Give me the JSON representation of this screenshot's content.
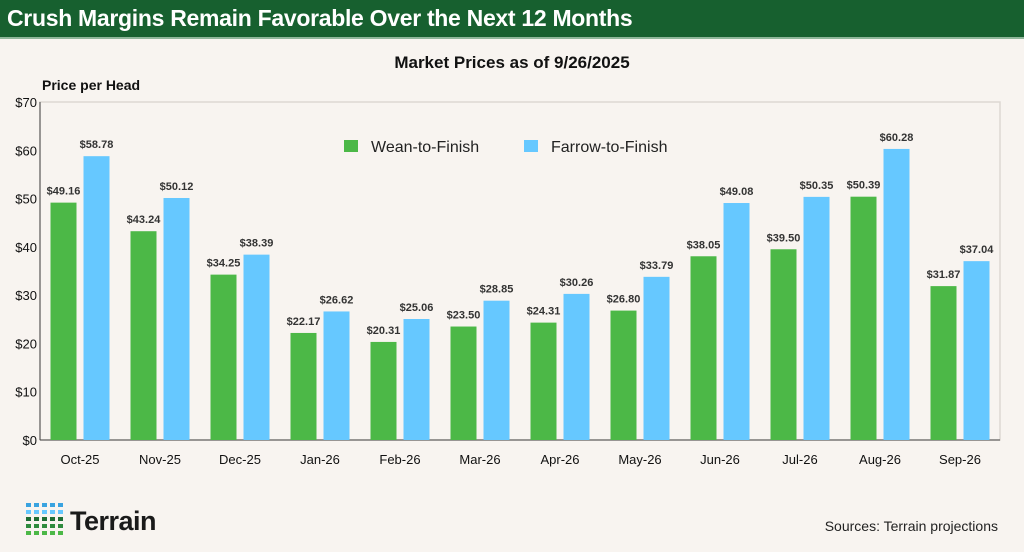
{
  "header": {
    "title": "Crush Margins Remain Favorable Over the Next 12 Months"
  },
  "chart_data": {
    "type": "bar",
    "title": "Market Prices as of 9/26/2025",
    "ylabel": "Price per Head",
    "xlabel": "",
    "ylim": [
      0,
      70
    ],
    "yticks": [
      0,
      10,
      20,
      30,
      40,
      50,
      60,
      70
    ],
    "ytick_labels": [
      "$0",
      "$10",
      "$20",
      "$30",
      "$40",
      "$50",
      "$60",
      "$70"
    ],
    "grid": false,
    "legend": "top-center",
    "categories": [
      "Oct-25",
      "Nov-25",
      "Dec-25",
      "Jan-26",
      "Feb-26",
      "Mar-26",
      "Apr-26",
      "May-26",
      "Jun-26",
      "Jul-26",
      "Aug-26",
      "Sep-26"
    ],
    "series": [
      {
        "name": "Wean-to-Finish",
        "color": "#4cb847",
        "values": [
          49.16,
          43.24,
          34.25,
          22.17,
          20.31,
          23.5,
          24.31,
          26.8,
          38.05,
          39.5,
          50.39,
          31.87
        ],
        "labels": [
          "$49.16",
          "$43.24",
          "$34.25",
          "$22.17",
          "$20.31",
          "$23.50",
          "$24.31",
          "$26.80",
          "$38.05",
          "$39.50",
          "$50.39",
          "$31.87"
        ]
      },
      {
        "name": "Farrow-to-Finish",
        "color": "#66c8ff",
        "values": [
          58.78,
          50.12,
          38.39,
          26.62,
          25.06,
          28.85,
          30.26,
          33.79,
          49.08,
          50.35,
          60.28,
          37.04
        ],
        "labels": [
          "$58.78",
          "$50.12",
          "$38.39",
          "$26.62",
          "$25.06",
          "$28.85",
          "$30.26",
          "$33.79",
          "$49.08",
          "$50.35",
          "$60.28",
          "$37.04"
        ]
      }
    ]
  },
  "footer": {
    "logo_text": "Terrain",
    "source": "Sources: Terrain projections"
  }
}
